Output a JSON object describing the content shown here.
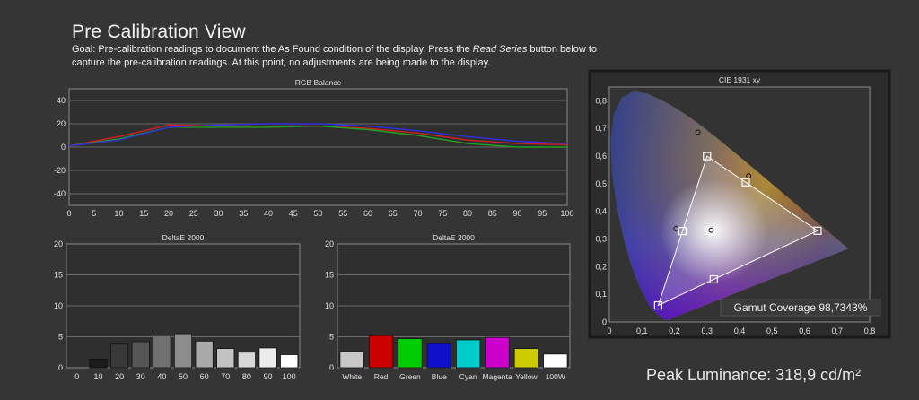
{
  "page": {
    "title": "Pre Calibration View",
    "goal_prefix": "Goal: Pre-calibration readings to document the As Found condition of the display. Press the ",
    "goal_emphasis": "Read Series",
    "goal_suffix": " button below to capture the pre-calibration readings. At this point, no adjustments are being made to the display.",
    "peak_luminance": "Peak Luminance: 318,9 cd/m²"
  },
  "colors": {
    "background": "#353535",
    "plot_bg": "#2f2f2f",
    "red": "#d42020",
    "green": "#20a020",
    "blue": "#3030e0"
  },
  "chart_data": [
    {
      "id": "rgb",
      "type": "line",
      "title": "RGB Balance",
      "xlim": [
        0,
        100
      ],
      "ylim": [
        -50,
        50
      ],
      "xticks": [
        0,
        5,
        10,
        15,
        20,
        25,
        30,
        35,
        40,
        45,
        50,
        55,
        60,
        65,
        70,
        75,
        80,
        85,
        90,
        95,
        100
      ],
      "yticks": [
        -40,
        -20,
        0,
        20,
        40
      ],
      "x": [
        0,
        10,
        20,
        30,
        40,
        50,
        60,
        70,
        80,
        90,
        100
      ],
      "series": [
        {
          "color": "red",
          "values": [
            1,
            9,
            19,
            18,
            18,
            18,
            16,
            12,
            6,
            3,
            2
          ]
        },
        {
          "color": "green",
          "values": [
            1,
            7,
            17,
            17,
            17,
            18,
            15,
            10,
            3,
            0,
            0
          ]
        },
        {
          "color": "blue",
          "values": [
            1,
            6,
            17,
            19,
            20,
            20,
            18,
            14,
            9,
            5,
            3
          ]
        }
      ]
    },
    {
      "id": "de_gray",
      "type": "bar",
      "title": "DeltaE 2000",
      "ylim": [
        0,
        20
      ],
      "yticks": [
        0,
        5,
        10,
        15,
        20
      ],
      "categories": [
        "0",
        "10",
        "20",
        "30",
        "40",
        "50",
        "60",
        "70",
        "80",
        "90",
        "100"
      ],
      "values": [
        0,
        1.4,
        3.8,
        4.2,
        5.2,
        5.5,
        4.3,
        3.1,
        2.5,
        3.2,
        2.1
      ],
      "bar_colors": [
        "#000000",
        "#1c1c1c",
        "#393939",
        "#555555",
        "#717171",
        "#8d8d8d",
        "#a9a9a9",
        "#c2c2c2",
        "#d8d8d8",
        "#ebebeb",
        "#ffffff"
      ]
    },
    {
      "id": "de_color",
      "type": "bar",
      "title": "DeltaE 2000",
      "ylim": [
        0,
        20
      ],
      "yticks": [
        0,
        5,
        10,
        15,
        20
      ],
      "categories": [
        "White",
        "Red",
        "Green",
        "Blue",
        "Cyan",
        "Magenta",
        "Yellow",
        "100W"
      ],
      "values": [
        2.6,
        5.2,
        4.7,
        3.9,
        4.5,
        4.9,
        3.1,
        2.2
      ],
      "bar_colors": [
        "#c8c8c8",
        "#cc0000",
        "#00cc00",
        "#1010cc",
        "#00cccc",
        "#cc00cc",
        "#cccc00",
        "#ffffff"
      ]
    },
    {
      "id": "cie",
      "type": "scatter",
      "title": "CIE 1931 xy",
      "xlim": [
        0,
        0.8
      ],
      "ylim": [
        0,
        0.85
      ],
      "xticks": [
        "0",
        "0,1",
        "0,2",
        "0,3",
        "0,4",
        "0,5",
        "0,6",
        "0,7",
        "0,8"
      ],
      "yticks": [
        "0",
        "0,1",
        "0,2",
        "0,3",
        "0,4",
        "0,5",
        "0,6",
        "0,7",
        "0,8"
      ],
      "target_triangle": [
        [
          0.64,
          0.33
        ],
        [
          0.3,
          0.6
        ],
        [
          0.15,
          0.06
        ]
      ],
      "targets": [
        [
          0.64,
          0.33
        ],
        [
          0.3,
          0.6
        ],
        [
          0.15,
          0.06
        ],
        [
          0.2247,
          0.3287
        ],
        [
          0.3209,
          0.1542
        ],
        [
          0.4193,
          0.5053
        ],
        [
          0.3127,
          0.329
        ]
      ],
      "measured": [
        [
          0.272,
          0.686
        ],
        [
          0.428,
          0.528
        ],
        [
          0.205,
          0.338
        ],
        [
          0.313,
          0.332
        ]
      ],
      "gamut_coverage": "Gamut Coverage 98,7343%"
    }
  ]
}
